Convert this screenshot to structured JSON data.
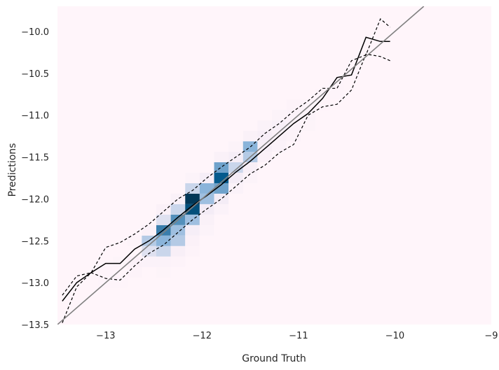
{
  "chart_data": {
    "type": "heatmap",
    "title": "",
    "xlabel": "Ground Truth",
    "ylabel": "Predictions",
    "xlim": [
      -13.5,
      -9.0
    ],
    "ylim": [
      -13.5,
      -9.7
    ],
    "xticks": [
      -13,
      -12,
      -11,
      -10,
      -9
    ],
    "xtick_labels": [
      "−13",
      "−12",
      "−11",
      "−10",
      "−9"
    ],
    "yticks": [
      -10.0,
      -10.5,
      -11.0,
      -11.5,
      -12.0,
      -12.5,
      -13.0,
      -13.5
    ],
    "ytick_labels": [
      "−10.0",
      "−10.5",
      "−11.0",
      "−11.5",
      "−12.0",
      "−12.5",
      "−13.0",
      "−13.5"
    ],
    "grid": false,
    "colors": {
      "background": "#fff5fa",
      "heat_low": "#f4ecf6",
      "heat_mid": "#8ab4da",
      "heat_high": "#045a8d",
      "heat_max": "#023858",
      "median_line": "#000000",
      "quantile_lines": "#000000",
      "identity_line": "#808080"
    },
    "heatmap": {
      "x_bin_width": 0.15,
      "y_bin_width": 0.125,
      "cells": [
        [
          -13.0,
          -13.0,
          0.02
        ],
        [
          -13.0,
          -12.875,
          0.03
        ],
        [
          -12.85,
          -13.0,
          0.03
        ],
        [
          -12.85,
          -12.75,
          0.05
        ],
        [
          -12.7,
          -12.875,
          0.06
        ],
        [
          -12.7,
          -12.75,
          0.12
        ],
        [
          -12.7,
          -12.5,
          0.05
        ],
        [
          -12.55,
          -12.75,
          0.1
        ],
        [
          -12.55,
          -12.625,
          0.35
        ],
        [
          -12.55,
          -12.5,
          0.45
        ],
        [
          -12.55,
          -12.375,
          0.12
        ],
        [
          -12.4,
          -12.875,
          0.05
        ],
        [
          -12.4,
          -12.75,
          0.1
        ],
        [
          -12.4,
          -12.625,
          0.4
        ],
        [
          -12.4,
          -12.5,
          0.55
        ],
        [
          -12.4,
          -12.375,
          0.7
        ],
        [
          -12.4,
          -12.25,
          0.35
        ],
        [
          -12.4,
          -12.125,
          0.12
        ],
        [
          -12.25,
          -12.75,
          0.06
        ],
        [
          -12.25,
          -12.625,
          0.2
        ],
        [
          -12.25,
          -12.5,
          0.45
        ],
        [
          -12.25,
          -12.375,
          0.5
        ],
        [
          -12.25,
          -12.25,
          0.65
        ],
        [
          -12.25,
          -12.125,
          0.4
        ],
        [
          -12.25,
          -12.0,
          0.15
        ],
        [
          -12.1,
          -12.625,
          0.06
        ],
        [
          -12.1,
          -12.5,
          0.12
        ],
        [
          -12.1,
          -12.375,
          0.25
        ],
        [
          -12.1,
          -12.25,
          0.5
        ],
        [
          -12.1,
          -12.125,
          0.85
        ],
        [
          -12.1,
          -12.0,
          0.95
        ],
        [
          -12.1,
          -11.875,
          0.4
        ],
        [
          -12.1,
          -11.75,
          0.08
        ],
        [
          -11.95,
          -12.375,
          0.08
        ],
        [
          -11.95,
          -12.25,
          0.15
        ],
        [
          -11.95,
          -12.125,
          0.3
        ],
        [
          -11.95,
          -12.0,
          0.5
        ],
        [
          -11.95,
          -11.875,
          0.55
        ],
        [
          -11.95,
          -11.75,
          0.25
        ],
        [
          -11.8,
          -12.125,
          0.1
        ],
        [
          -11.8,
          -12.0,
          0.3
        ],
        [
          -11.8,
          -11.875,
          0.6
        ],
        [
          -11.8,
          -11.75,
          0.8
        ],
        [
          -11.8,
          -11.625,
          0.6
        ],
        [
          -11.8,
          -11.5,
          0.15
        ],
        [
          -11.65,
          -11.875,
          0.1
        ],
        [
          -11.65,
          -11.75,
          0.3
        ],
        [
          -11.65,
          -11.625,
          0.4
        ],
        [
          -11.65,
          -11.5,
          0.25
        ],
        [
          -11.65,
          -11.375,
          0.08
        ],
        [
          -11.5,
          -11.75,
          0.08
        ],
        [
          -11.5,
          -11.625,
          0.2
        ],
        [
          -11.5,
          -11.5,
          0.45
        ],
        [
          -11.5,
          -11.375,
          0.55
        ],
        [
          -11.5,
          -11.25,
          0.15
        ],
        [
          -11.35,
          -11.5,
          0.12
        ],
        [
          -11.35,
          -11.375,
          0.2
        ],
        [
          -11.35,
          -11.25,
          0.22
        ],
        [
          -11.35,
          -11.125,
          0.1
        ],
        [
          -11.2,
          -11.375,
          0.1
        ],
        [
          -11.2,
          -11.25,
          0.15
        ],
        [
          -11.2,
          -11.125,
          0.18
        ],
        [
          -11.2,
          -11.0,
          0.08
        ],
        [
          -11.05,
          -11.25,
          0.08
        ],
        [
          -11.05,
          -11.125,
          0.1
        ],
        [
          -11.05,
          -11.0,
          0.1
        ],
        [
          -11.05,
          -10.875,
          0.06
        ],
        [
          -10.9,
          -11.125,
          0.05
        ],
        [
          -10.9,
          -11.0,
          0.07
        ],
        [
          -10.9,
          -10.875,
          0.05
        ],
        [
          -10.75,
          -10.875,
          0.04
        ],
        [
          -10.75,
          -10.75,
          0.04
        ],
        [
          -10.6,
          -10.75,
          0.03
        ],
        [
          -10.6,
          -10.625,
          0.03
        ],
        [
          -10.45,
          -10.5,
          0.03
        ]
      ]
    },
    "series": [
      {
        "name": "median",
        "style": "solid",
        "x": [
          -13.45,
          -13.3,
          -13.15,
          -13.0,
          -12.85,
          -12.7,
          -12.55,
          -12.4,
          -12.25,
          -12.1,
          -11.95,
          -11.8,
          -11.65,
          -11.5,
          -11.35,
          -11.2,
          -11.05,
          -10.9,
          -10.75,
          -10.6,
          -10.45,
          -10.3,
          -10.15,
          -10.05
        ],
        "y": [
          -13.22,
          -13.0,
          -12.88,
          -12.77,
          -12.77,
          -12.6,
          -12.5,
          -12.37,
          -12.22,
          -12.08,
          -11.96,
          -11.83,
          -11.68,
          -11.55,
          -11.4,
          -11.25,
          -11.1,
          -10.98,
          -10.8,
          -10.55,
          -10.52,
          -10.07,
          -10.12,
          -10.12
        ]
      },
      {
        "name": "lower quantile",
        "style": "dashed",
        "x": [
          -13.45,
          -13.3,
          -13.15,
          -13.0,
          -12.85,
          -12.7,
          -12.55,
          -12.4,
          -12.25,
          -12.1,
          -11.95,
          -11.8,
          -11.65,
          -11.5,
          -11.35,
          -11.2,
          -11.05,
          -10.9,
          -10.75,
          -10.6,
          -10.45,
          -10.3,
          -10.15,
          -10.05
        ],
        "y": [
          -13.48,
          -13.05,
          -12.88,
          -12.95,
          -12.97,
          -12.8,
          -12.65,
          -12.55,
          -12.4,
          -12.25,
          -12.12,
          -12.0,
          -11.85,
          -11.7,
          -11.6,
          -11.45,
          -11.35,
          -11.0,
          -10.9,
          -10.87,
          -10.7,
          -10.27,
          -10.3,
          -10.35
        ]
      },
      {
        "name": "upper quantile",
        "style": "dashed",
        "x": [
          -13.45,
          -13.3,
          -13.15,
          -13.0,
          -12.85,
          -12.7,
          -12.55,
          -12.4,
          -12.25,
          -12.1,
          -11.95,
          -11.8,
          -11.65,
          -11.5,
          -11.35,
          -11.2,
          -11.05,
          -10.9,
          -10.75,
          -10.6,
          -10.45,
          -10.3,
          -10.15,
          -10.05
        ],
        "y": [
          -13.15,
          -12.92,
          -12.88,
          -12.58,
          -12.52,
          -12.42,
          -12.3,
          -12.15,
          -12.0,
          -11.9,
          -11.75,
          -11.62,
          -11.5,
          -11.38,
          -11.22,
          -11.1,
          -10.95,
          -10.83,
          -10.68,
          -10.68,
          -10.35,
          -10.28,
          -9.85,
          -9.95
        ]
      },
      {
        "name": "identity",
        "style": "solid-gray",
        "x": [
          -13.5,
          -9.7
        ],
        "y": [
          -13.5,
          -9.7
        ]
      }
    ]
  }
}
